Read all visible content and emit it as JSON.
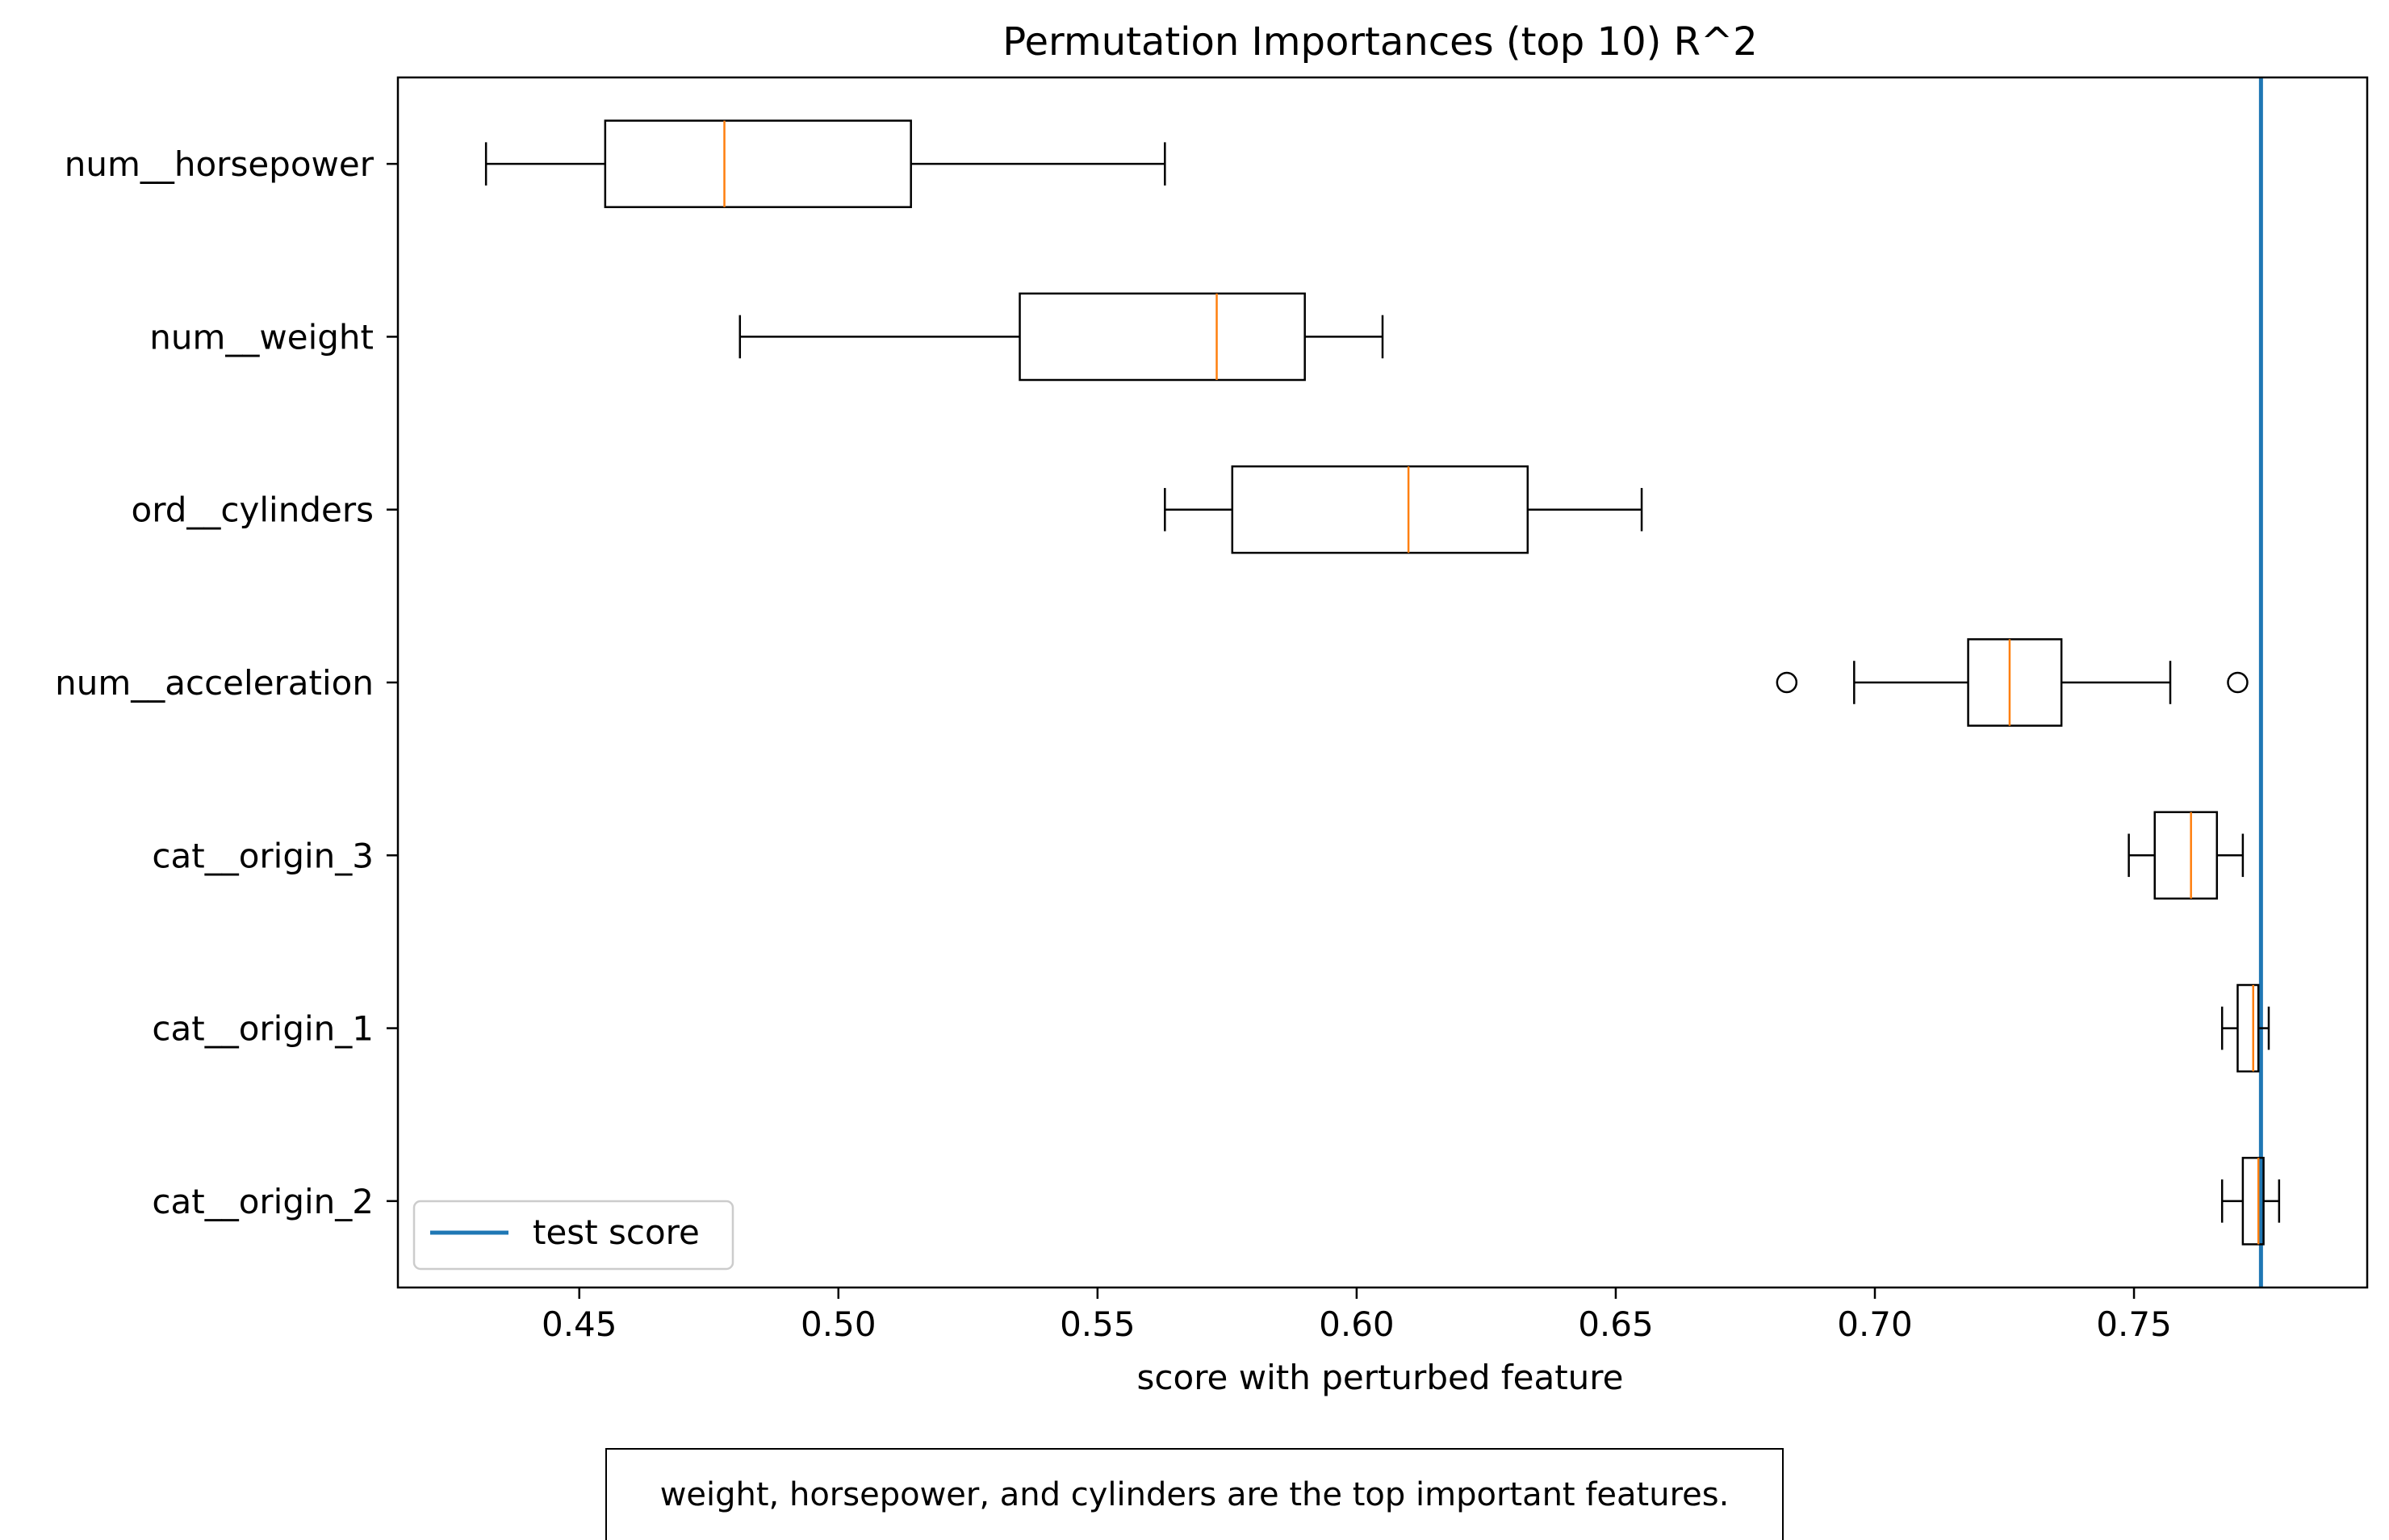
{
  "chart_data": {
    "type": "boxplot",
    "orientation": "horizontal",
    "title": "Permutation Importances (top 10) R^2",
    "xlabel": "score with perturbed feature",
    "ylabel": "",
    "xlim": [
      0.415,
      0.795
    ],
    "xticks": [
      0.45,
      0.5,
      0.55,
      0.6,
      0.65,
      0.7,
      0.75
    ],
    "xtick_labels": [
      "0.45",
      "0.50",
      "0.55",
      "0.60",
      "0.65",
      "0.70",
      "0.75"
    ],
    "grid": false,
    "legend": {
      "placement": "lower-left",
      "entries": [
        "test score"
      ]
    },
    "colors": {
      "box": "#000000",
      "median": "#ff7f0e",
      "reference_line": "#1f77b4"
    },
    "reference_line": {
      "name": "test score",
      "x": 0.7745
    },
    "categories": [
      "num__horsepower",
      "num__weight",
      "ord__cylinders",
      "num__acceleration",
      "cat__origin_3",
      "cat__origin_1",
      "cat__origin_2"
    ],
    "boxes": [
      {
        "name": "num__horsepower",
        "whisker_low": 0.432,
        "q1": 0.455,
        "median": 0.478,
        "q3": 0.514,
        "whisker_high": 0.563,
        "outliers": []
      },
      {
        "name": "num__weight",
        "whisker_low": 0.481,
        "q1": 0.535,
        "median": 0.573,
        "q3": 0.59,
        "whisker_high": 0.605,
        "outliers": []
      },
      {
        "name": "ord__cylinders",
        "whisker_low": 0.563,
        "q1": 0.576,
        "median": 0.61,
        "q3": 0.633,
        "whisker_high": 0.655,
        "outliers": []
      },
      {
        "name": "num__acceleration",
        "whisker_low": 0.696,
        "q1": 0.718,
        "median": 0.726,
        "q3": 0.736,
        "whisker_high": 0.757,
        "outliers": [
          0.683,
          0.77
        ]
      },
      {
        "name": "cat__origin_3",
        "whisker_low": 0.749,
        "q1": 0.754,
        "median": 0.761,
        "q3": 0.766,
        "whisker_high": 0.771,
        "outliers": []
      },
      {
        "name": "cat__origin_1",
        "whisker_low": 0.767,
        "q1": 0.77,
        "median": 0.773,
        "q3": 0.774,
        "whisker_high": 0.776,
        "outliers": []
      },
      {
        "name": "cat__origin_2",
        "whisker_low": 0.767,
        "q1": 0.771,
        "median": 0.774,
        "q3": 0.775,
        "whisker_high": 0.778,
        "outliers": []
      }
    ]
  },
  "caption": "weight, horsepower, and cylinders are the top important features."
}
